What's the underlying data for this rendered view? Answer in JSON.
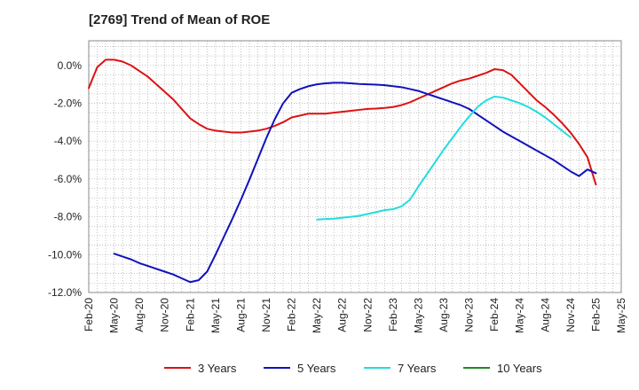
{
  "chart_data": {
    "type": "line",
    "title": "[2769]  Trend of Mean of ROE",
    "xlabel": "",
    "ylabel": "",
    "x_ticks": [
      "Feb-20",
      "May-20",
      "Aug-20",
      "Nov-20",
      "Feb-21",
      "May-21",
      "Aug-21",
      "Nov-21",
      "Feb-22",
      "May-22",
      "Aug-22",
      "Nov-22",
      "Feb-23",
      "May-23",
      "Aug-23",
      "Nov-23",
      "Feb-24",
      "May-24",
      "Aug-24",
      "Nov-24",
      "Feb-25",
      "May-25"
    ],
    "y_ticks": [
      "0.0%",
      "-2.0%",
      "-4.0%",
      "-6.0%",
      "-8.0%",
      "-10.0%",
      "-12.0%"
    ],
    "y_tick_values": [
      0,
      -2,
      -4,
      -6,
      -8,
      -10,
      -12
    ],
    "ylim": [
      -12,
      1.3
    ],
    "grid": true,
    "legend_position": "bottom",
    "series": [
      {
        "name": "3 Years",
        "color": "#dd1111",
        "points": [
          [
            "Feb-20",
            -1.2
          ],
          [
            "Mar-20",
            -0.1
          ],
          [
            "Apr-20",
            0.3
          ],
          [
            "May-20",
            0.3
          ],
          [
            "Jun-20",
            0.2
          ],
          [
            "Jul-20",
            0.0
          ],
          [
            "Aug-20",
            -0.3
          ],
          [
            "Sep-20",
            -0.6
          ],
          [
            "Oct-20",
            -1.0
          ],
          [
            "Nov-20",
            -1.4
          ],
          [
            "Dec-20",
            -1.8
          ],
          [
            "Jan-21",
            -2.3
          ],
          [
            "Feb-21",
            -2.8
          ],
          [
            "Mar-21",
            -3.1
          ],
          [
            "Apr-21",
            -3.35
          ],
          [
            "May-21",
            -3.45
          ],
          [
            "Jun-21",
            -3.5
          ],
          [
            "Jul-21",
            -3.55
          ],
          [
            "Aug-21",
            -3.55
          ],
          [
            "Sep-21",
            -3.5
          ],
          [
            "Oct-21",
            -3.45
          ],
          [
            "Nov-21",
            -3.35
          ],
          [
            "Dec-21",
            -3.2
          ],
          [
            "Jan-22",
            -3.0
          ],
          [
            "Feb-22",
            -2.75
          ],
          [
            "Mar-22",
            -2.65
          ],
          [
            "Apr-22",
            -2.55
          ],
          [
            "May-22",
            -2.55
          ],
          [
            "Jun-22",
            -2.55
          ],
          [
            "Jul-22",
            -2.5
          ],
          [
            "Aug-22",
            -2.45
          ],
          [
            "Sep-22",
            -2.4
          ],
          [
            "Oct-22",
            -2.35
          ],
          [
            "Nov-22",
            -2.3
          ],
          [
            "Dec-22",
            -2.28
          ],
          [
            "Jan-23",
            -2.25
          ],
          [
            "Feb-23",
            -2.2
          ],
          [
            "Mar-23",
            -2.1
          ],
          [
            "Apr-23",
            -1.95
          ],
          [
            "May-23",
            -1.75
          ],
          [
            "Jun-23",
            -1.55
          ],
          [
            "Jul-23",
            -1.35
          ],
          [
            "Aug-23",
            -1.15
          ],
          [
            "Sep-23",
            -0.95
          ],
          [
            "Oct-23",
            -0.8
          ],
          [
            "Nov-23",
            -0.7
          ],
          [
            "Dec-23",
            -0.55
          ],
          [
            "Jan-24",
            -0.4
          ],
          [
            "Feb-24",
            -0.2
          ],
          [
            "Mar-24",
            -0.25
          ],
          [
            "Apr-24",
            -0.5
          ],
          [
            "May-24",
            -0.95
          ],
          [
            "Jun-24",
            -1.4
          ],
          [
            "Jul-24",
            -1.85
          ],
          [
            "Aug-24",
            -2.2
          ],
          [
            "Sep-24",
            -2.6
          ],
          [
            "Oct-24",
            -3.05
          ],
          [
            "Nov-24",
            -3.55
          ],
          [
            "Dec-24",
            -4.15
          ],
          [
            "Jan-25",
            -4.85
          ],
          [
            "Feb-25",
            -6.3
          ]
        ]
      },
      {
        "name": "5 Years",
        "color": "#1111bb",
        "points": [
          [
            "May-20",
            -9.95
          ],
          [
            "Jun-20",
            -10.1
          ],
          [
            "Jul-20",
            -10.25
          ],
          [
            "Aug-20",
            -10.45
          ],
          [
            "Sep-20",
            -10.6
          ],
          [
            "Oct-20",
            -10.75
          ],
          [
            "Nov-20",
            -10.9
          ],
          [
            "Dec-20",
            -11.05
          ],
          [
            "Jan-21",
            -11.25
          ],
          [
            "Feb-21",
            -11.45
          ],
          [
            "Mar-21",
            -11.35
          ],
          [
            "Apr-21",
            -10.9
          ],
          [
            "May-21",
            -10.0
          ],
          [
            "Jun-21",
            -9.05
          ],
          [
            "Jul-21",
            -8.1
          ],
          [
            "Aug-21",
            -7.1
          ],
          [
            "Sep-21",
            -6.05
          ],
          [
            "Oct-21",
            -4.95
          ],
          [
            "Nov-21",
            -3.85
          ],
          [
            "Dec-21",
            -2.85
          ],
          [
            "Jan-22",
            -2.0
          ],
          [
            "Feb-22",
            -1.45
          ],
          [
            "Mar-22",
            -1.25
          ],
          [
            "Apr-22",
            -1.1
          ],
          [
            "May-22",
            -1.0
          ],
          [
            "Jun-22",
            -0.95
          ],
          [
            "Jul-22",
            -0.92
          ],
          [
            "Aug-22",
            -0.92
          ],
          [
            "Sep-22",
            -0.95
          ],
          [
            "Oct-22",
            -0.98
          ],
          [
            "Nov-22",
            -1.0
          ],
          [
            "Dec-22",
            -1.02
          ],
          [
            "Jan-23",
            -1.05
          ],
          [
            "Feb-23",
            -1.1
          ],
          [
            "Mar-23",
            -1.15
          ],
          [
            "Apr-23",
            -1.25
          ],
          [
            "May-23",
            -1.35
          ],
          [
            "Jun-23",
            -1.5
          ],
          [
            "Jul-23",
            -1.65
          ],
          [
            "Aug-23",
            -1.8
          ],
          [
            "Sep-23",
            -1.95
          ],
          [
            "Oct-23",
            -2.1
          ],
          [
            "Nov-23",
            -2.3
          ],
          [
            "Dec-23",
            -2.6
          ],
          [
            "Jan-24",
            -2.9
          ],
          [
            "Feb-24",
            -3.2
          ],
          [
            "Mar-24",
            -3.5
          ],
          [
            "Apr-24",
            -3.75
          ],
          [
            "May-24",
            -4.0
          ],
          [
            "Jun-24",
            -4.25
          ],
          [
            "Jul-24",
            -4.5
          ],
          [
            "Aug-24",
            -4.75
          ],
          [
            "Sep-24",
            -5.0
          ],
          [
            "Oct-24",
            -5.3
          ],
          [
            "Nov-24",
            -5.6
          ],
          [
            "Dec-24",
            -5.85
          ],
          [
            "Jan-25",
            -5.5
          ],
          [
            "Feb-25",
            -5.7
          ]
        ]
      },
      {
        "name": "7 Years",
        "color": "#22dddd",
        "points": [
          [
            "May-22",
            -8.15
          ],
          [
            "Jun-22",
            -8.12
          ],
          [
            "Jul-22",
            -8.1
          ],
          [
            "Aug-22",
            -8.05
          ],
          [
            "Sep-22",
            -8.0
          ],
          [
            "Oct-22",
            -7.95
          ],
          [
            "Nov-22",
            -7.85
          ],
          [
            "Dec-22",
            -7.75
          ],
          [
            "Jan-23",
            -7.65
          ],
          [
            "Feb-23",
            -7.6
          ],
          [
            "Mar-23",
            -7.45
          ],
          [
            "Apr-23",
            -7.1
          ],
          [
            "May-23",
            -6.4
          ],
          [
            "Jun-23",
            -5.75
          ],
          [
            "Jul-23",
            -5.1
          ],
          [
            "Aug-23",
            -4.45
          ],
          [
            "Sep-23",
            -3.85
          ],
          [
            "Oct-23",
            -3.25
          ],
          [
            "Nov-23",
            -2.7
          ],
          [
            "Dec-23",
            -2.2
          ],
          [
            "Jan-24",
            -1.85
          ],
          [
            "Feb-24",
            -1.65
          ],
          [
            "Mar-24",
            -1.7
          ],
          [
            "Apr-24",
            -1.85
          ],
          [
            "May-24",
            -2.0
          ],
          [
            "Jun-24",
            -2.2
          ],
          [
            "Jul-24",
            -2.45
          ],
          [
            "Aug-24",
            -2.75
          ],
          [
            "Sep-24",
            -3.1
          ],
          [
            "Oct-24",
            -3.45
          ],
          [
            "Nov-24",
            -3.8
          ]
        ]
      },
      {
        "name": "10 Years",
        "color": "#228822",
        "points": []
      }
    ]
  }
}
